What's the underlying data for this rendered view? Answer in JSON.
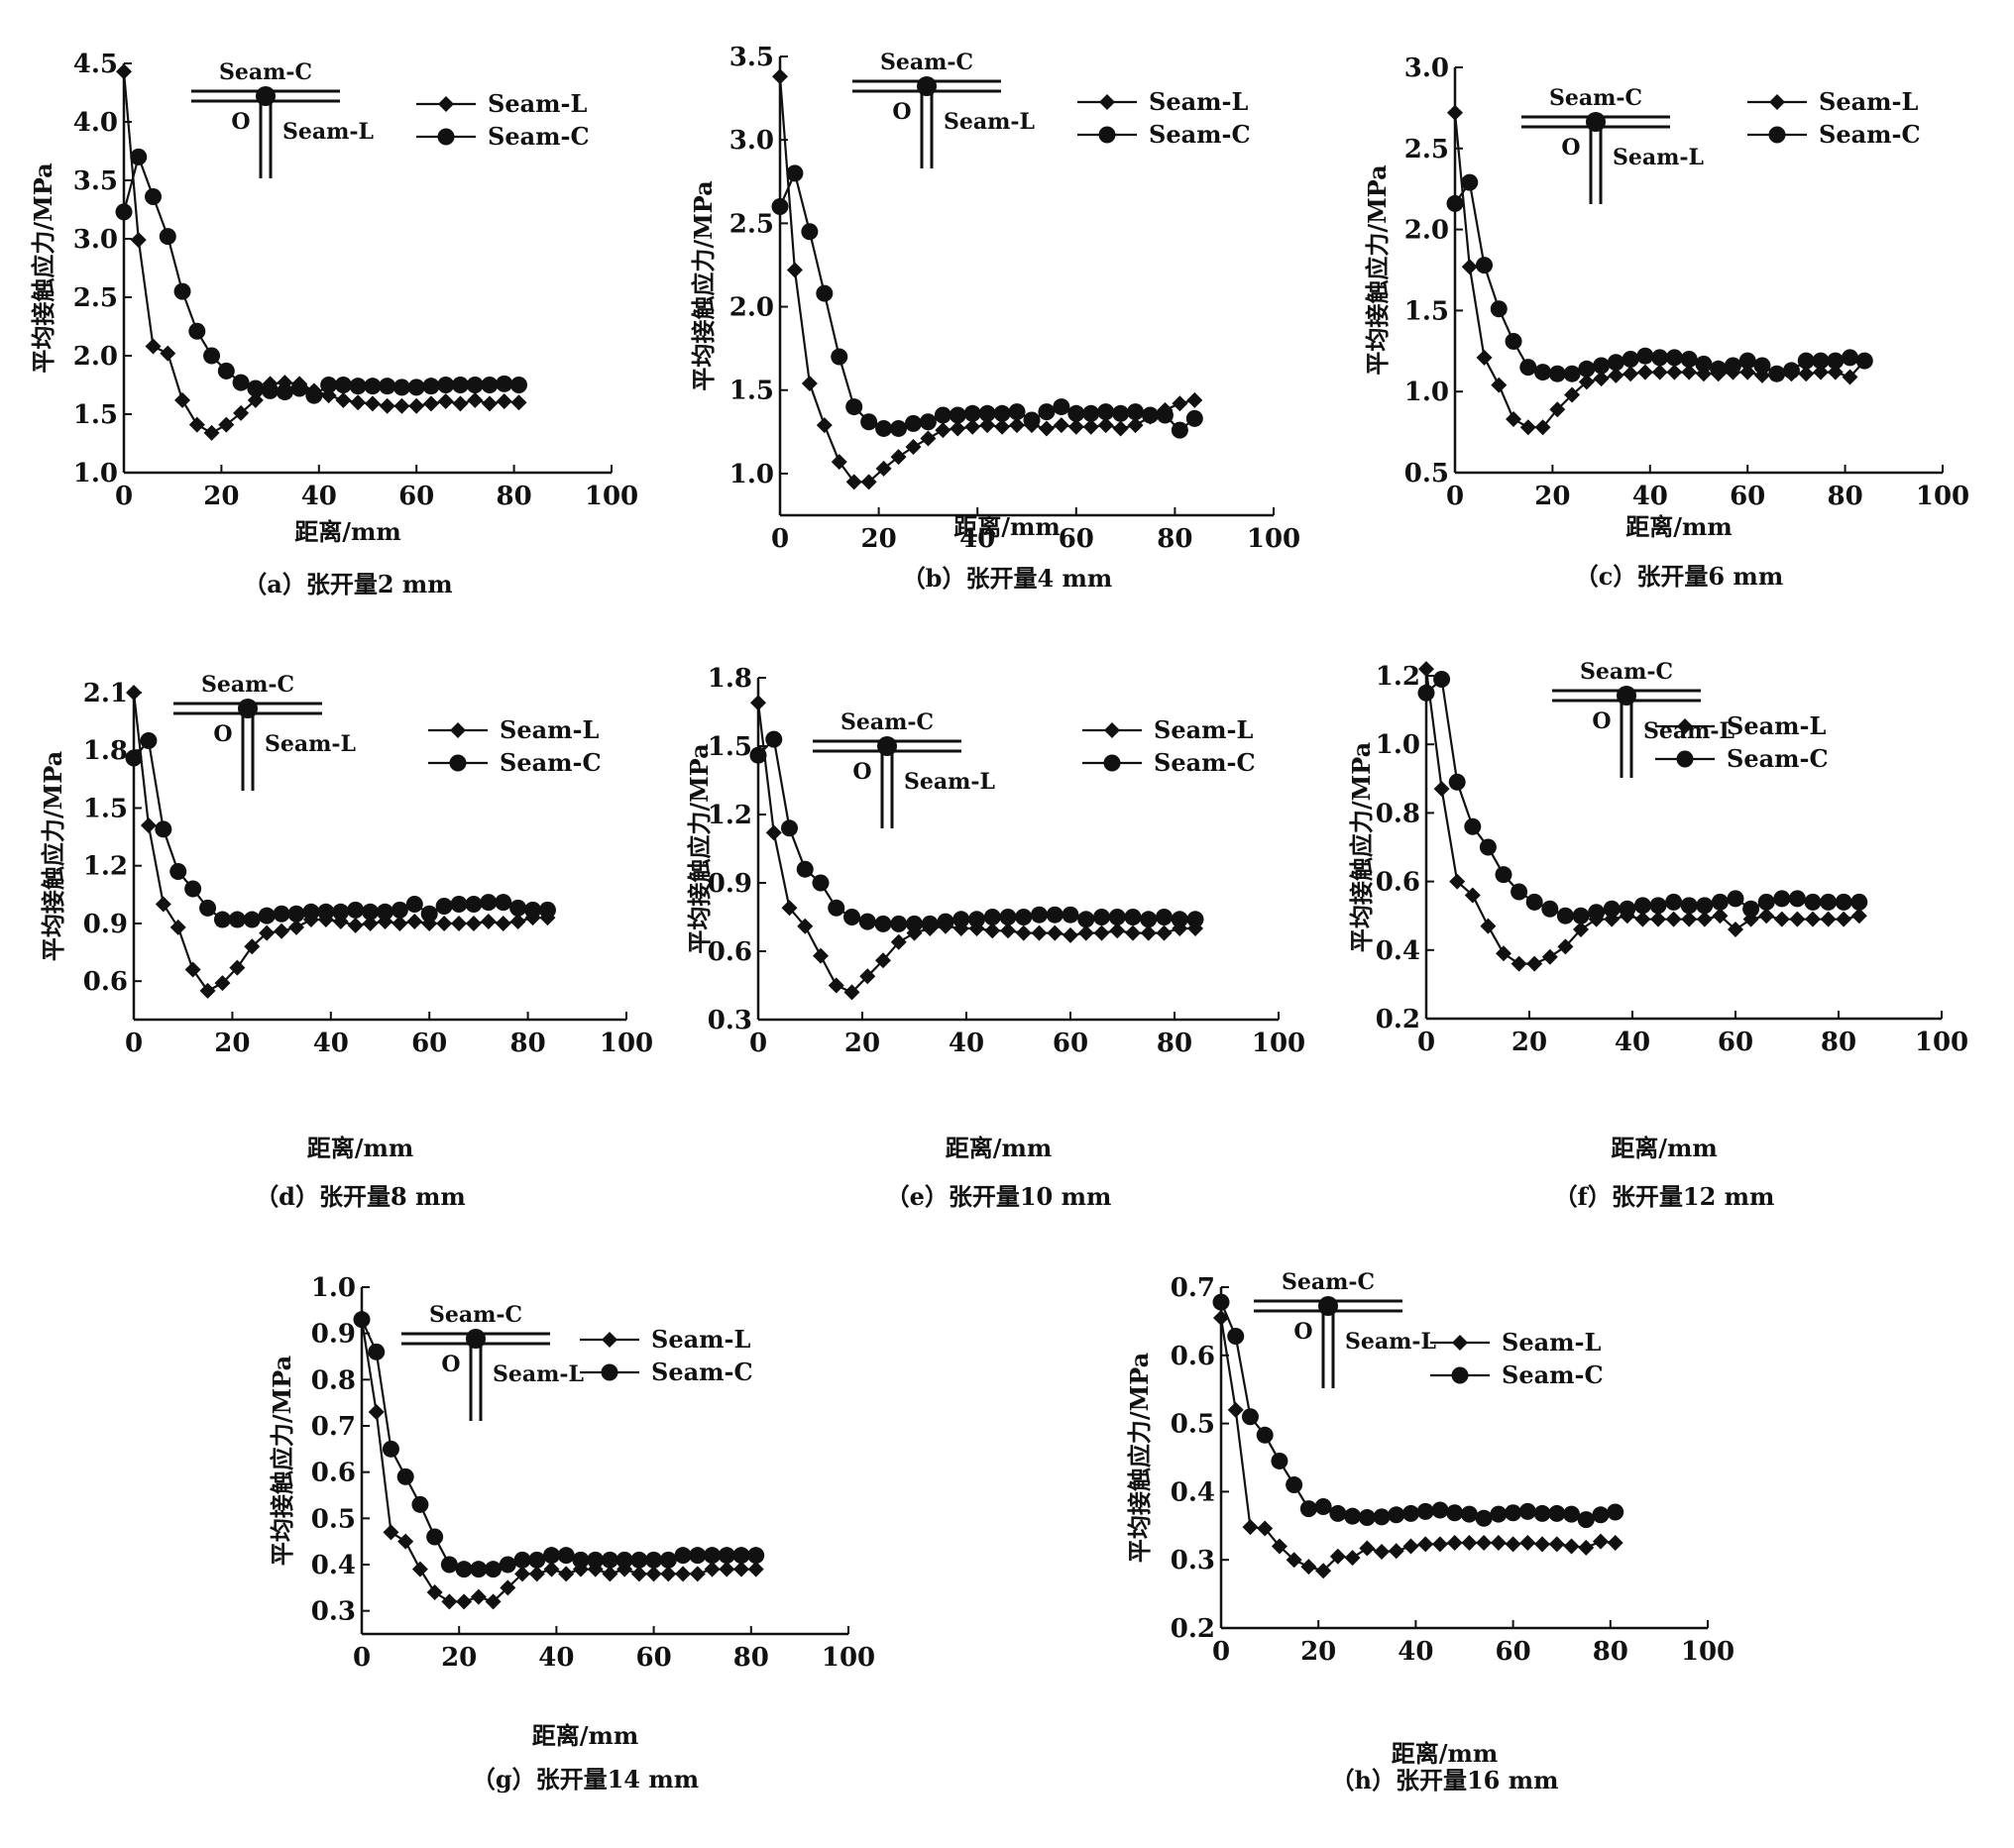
{
  "figure": {
    "legend_labels": [
      "Seam-L",
      "Seam-C"
    ],
    "schematic": {
      "top_label": "Seam-C",
      "side_label": "Seam-L",
      "origin_label": "O"
    }
  },
  "chart_data": [
    {
      "type": "line",
      "panel": "a",
      "title": "（a）张开量2 mm",
      "xlabel": "距离/mm",
      "ylabel": "平均接触应力/MPa",
      "xlim": [
        0,
        100
      ],
      "ylim": [
        1.0,
        4.5
      ],
      "xticks": [
        "0",
        "20",
        "40",
        "60",
        "80",
        "100"
      ],
      "yticks": [
        "1.0",
        "1.5",
        "2.0",
        "2.5",
        "3.0",
        "3.5",
        "4.0",
        "4.5"
      ],
      "legend": "top-right",
      "x": [
        0,
        3,
        6,
        9,
        12,
        15,
        18,
        21,
        24,
        27,
        30,
        33,
        36,
        39,
        42,
        45,
        48,
        51,
        54,
        57,
        60,
        63,
        66,
        69,
        72,
        75,
        78,
        81
      ],
      "series": [
        {
          "name": "Seam-L",
          "marker": "diamond",
          "values": [
            4.43,
            2.99,
            2.08,
            2.02,
            1.62,
            1.41,
            1.34,
            1.41,
            1.51,
            1.62,
            1.76,
            1.77,
            1.76,
            1.7,
            1.66,
            1.62,
            1.6,
            1.59,
            1.57,
            1.57,
            1.57,
            1.59,
            1.61,
            1.59,
            1.62,
            1.59,
            1.61,
            1.6
          ]
        },
        {
          "name": "Seam-C",
          "marker": "circle",
          "values": [
            3.23,
            3.7,
            3.36,
            3.02,
            2.55,
            2.21,
            2.0,
            1.87,
            1.77,
            1.72,
            1.7,
            1.69,
            1.72,
            1.66,
            1.75,
            1.75,
            1.74,
            1.74,
            1.74,
            1.73,
            1.73,
            1.74,
            1.75,
            1.75,
            1.75,
            1.75,
            1.76,
            1.75
          ]
        }
      ]
    },
    {
      "type": "line",
      "panel": "b",
      "title": "（b）张开量4 mm",
      "xlabel": "距离/mm",
      "ylabel": "平均接触应力/MPa",
      "xlim": [
        0,
        100
      ],
      "ylim": [
        0.75,
        3.5
      ],
      "xticks": [
        "0",
        "20",
        "40",
        "60",
        "80",
        "100"
      ],
      "yticks": [
        "1.0",
        "1.5",
        "2.0",
        "2.5",
        "3.0",
        "3.5"
      ],
      "legend": "top-right",
      "x": [
        0,
        3,
        6,
        9,
        12,
        15,
        18,
        21,
        24,
        27,
        30,
        33,
        36,
        39,
        42,
        45,
        48,
        51,
        54,
        57,
        60,
        63,
        66,
        69,
        72,
        75,
        78,
        81,
        84
      ],
      "series": [
        {
          "name": "Seam-L",
          "marker": "diamond",
          "values": [
            3.38,
            2.22,
            1.54,
            1.29,
            1.07,
            0.95,
            0.95,
            1.03,
            1.1,
            1.16,
            1.21,
            1.26,
            1.27,
            1.28,
            1.29,
            1.28,
            1.29,
            1.29,
            1.27,
            1.29,
            1.28,
            1.28,
            1.29,
            1.27,
            1.29,
            1.34,
            1.38,
            1.42,
            1.44
          ]
        },
        {
          "name": "Seam-C",
          "marker": "circle",
          "values": [
            2.6,
            2.8,
            2.45,
            2.08,
            1.7,
            1.4,
            1.31,
            1.27,
            1.27,
            1.3,
            1.31,
            1.35,
            1.35,
            1.36,
            1.36,
            1.36,
            1.37,
            1.32,
            1.37,
            1.4,
            1.36,
            1.36,
            1.37,
            1.36,
            1.37,
            1.35,
            1.35,
            1.26,
            1.33
          ]
        }
      ]
    },
    {
      "type": "line",
      "panel": "c",
      "title": "（c）张开量6 mm",
      "xlabel": "距离/mm",
      "ylabel": "平均接触应力/MPa",
      "xlim": [
        0,
        100
      ],
      "ylim": [
        0.5,
        3.0
      ],
      "xticks": [
        "0",
        "20",
        "40",
        "60",
        "80",
        "100"
      ],
      "yticks": [
        "0.5",
        "1.0",
        "1.5",
        "2.0",
        "2.5",
        "3.0"
      ],
      "legend": "top-right",
      "x": [
        0,
        3,
        6,
        9,
        12,
        15,
        18,
        21,
        24,
        27,
        30,
        33,
        36,
        39,
        42,
        45,
        48,
        51,
        54,
        57,
        60,
        63,
        66,
        69,
        72,
        75,
        78,
        81,
        84
      ],
      "series": [
        {
          "name": "Seam-L",
          "marker": "diamond",
          "values": [
            2.72,
            1.77,
            1.21,
            1.04,
            0.83,
            0.78,
            0.78,
            0.89,
            0.98,
            1.06,
            1.08,
            1.1,
            1.11,
            1.12,
            1.12,
            1.12,
            1.12,
            1.11,
            1.11,
            1.12,
            1.12,
            1.1,
            1.11,
            1.11,
            1.11,
            1.12,
            1.12,
            1.09,
            1.19
          ]
        },
        {
          "name": "Seam-C",
          "marker": "circle",
          "values": [
            2.16,
            2.29,
            1.78,
            1.51,
            1.31,
            1.15,
            1.12,
            1.11,
            1.11,
            1.14,
            1.16,
            1.18,
            1.2,
            1.22,
            1.21,
            1.21,
            1.2,
            1.17,
            1.14,
            1.16,
            1.19,
            1.16,
            1.11,
            1.13,
            1.19,
            1.19,
            1.19,
            1.21,
            1.19
          ]
        }
      ]
    },
    {
      "type": "line",
      "panel": "d",
      "title": "（d）张开量8 mm",
      "xlabel": "距离/mm",
      "ylabel": "平均接触应力/MPa",
      "xlim": [
        0,
        100
      ],
      "ylim": [
        0.4,
        2.1
      ],
      "xticks": [
        "0",
        "20",
        "40",
        "60",
        "80",
        "100"
      ],
      "yticks": [
        "0.6",
        "0.9",
        "1.2",
        "1.5",
        "1.8",
        "2.1"
      ],
      "legend": "top-right",
      "x": [
        0,
        3,
        6,
        9,
        12,
        15,
        18,
        21,
        24,
        27,
        30,
        33,
        36,
        39,
        42,
        45,
        48,
        51,
        54,
        57,
        60,
        63,
        66,
        69,
        72,
        75,
        78,
        81,
        84
      ],
      "series": [
        {
          "name": "Seam-L",
          "marker": "diamond",
          "values": [
            2.1,
            1.41,
            1.0,
            0.88,
            0.66,
            0.55,
            0.59,
            0.67,
            0.78,
            0.85,
            0.86,
            0.88,
            0.92,
            0.92,
            0.91,
            0.89,
            0.9,
            0.91,
            0.9,
            0.91,
            0.9,
            0.9,
            0.9,
            0.9,
            0.91,
            0.9,
            0.91,
            0.93,
            0.93
          ]
        },
        {
          "name": "Seam-C",
          "marker": "circle",
          "values": [
            1.76,
            1.85,
            1.39,
            1.17,
            1.08,
            0.98,
            0.92,
            0.92,
            0.92,
            0.94,
            0.95,
            0.95,
            0.96,
            0.96,
            0.96,
            0.97,
            0.96,
            0.96,
            0.97,
            1.0,
            0.95,
            0.99,
            1.0,
            1.0,
            1.01,
            1.01,
            0.98,
            0.97,
            0.97
          ]
        }
      ]
    },
    {
      "type": "line",
      "panel": "e",
      "title": "（e）张开量10 mm",
      "xlabel": "距离/mm",
      "ylabel": "平均接触应力/MPa",
      "xlim": [
        0,
        100
      ],
      "ylim": [
        0.3,
        1.8
      ],
      "xticks": [
        "0",
        "20",
        "40",
        "60",
        "80",
        "100"
      ],
      "yticks": [
        "0.3",
        "0.6",
        "0.9",
        "1.2",
        "1.5",
        "1.8"
      ],
      "legend": "top-right",
      "x": [
        0,
        3,
        6,
        9,
        12,
        15,
        18,
        21,
        24,
        27,
        30,
        33,
        36,
        39,
        42,
        45,
        48,
        51,
        54,
        57,
        60,
        63,
        66,
        69,
        72,
        75,
        78,
        81,
        84
      ],
      "series": [
        {
          "name": "Seam-L",
          "marker": "diamond",
          "values": [
            1.69,
            1.12,
            0.79,
            0.71,
            0.58,
            0.45,
            0.42,
            0.49,
            0.56,
            0.64,
            0.68,
            0.7,
            0.71,
            0.7,
            0.7,
            0.69,
            0.69,
            0.68,
            0.68,
            0.68,
            0.67,
            0.68,
            0.68,
            0.69,
            0.68,
            0.68,
            0.68,
            0.7,
            0.7
          ]
        },
        {
          "name": "Seam-C",
          "marker": "circle",
          "values": [
            1.46,
            1.53,
            1.14,
            0.96,
            0.9,
            0.79,
            0.75,
            0.73,
            0.72,
            0.72,
            0.72,
            0.72,
            0.73,
            0.74,
            0.74,
            0.75,
            0.75,
            0.75,
            0.76,
            0.76,
            0.76,
            0.74,
            0.75,
            0.75,
            0.75,
            0.74,
            0.75,
            0.74,
            0.74
          ]
        }
      ]
    },
    {
      "type": "line",
      "panel": "f",
      "title": "（f）张开量12 mm",
      "xlabel": "距离/mm",
      "ylabel": "平均接触应力/MPa",
      "xlim": [
        0,
        100
      ],
      "ylim": [
        0.2,
        1.2
      ],
      "xticks": [
        "0",
        "20",
        "40",
        "60",
        "80",
        "100"
      ],
      "yticks": [
        "0.2",
        "0.4",
        "0.6",
        "0.8",
        "1.0",
        "1.2"
      ],
      "legend": "top-right",
      "x": [
        0,
        3,
        6,
        9,
        12,
        15,
        18,
        21,
        24,
        27,
        30,
        33,
        36,
        39,
        42,
        45,
        48,
        51,
        54,
        57,
        60,
        63,
        66,
        69,
        72,
        75,
        78,
        81,
        84
      ],
      "series": [
        {
          "name": "Seam-L",
          "marker": "diamond",
          "values": [
            1.22,
            0.87,
            0.6,
            0.56,
            0.47,
            0.39,
            0.36,
            0.36,
            0.38,
            0.41,
            0.46,
            0.49,
            0.49,
            0.5,
            0.49,
            0.49,
            0.49,
            0.49,
            0.49,
            0.5,
            0.46,
            0.49,
            0.5,
            0.49,
            0.49,
            0.49,
            0.49,
            0.49,
            0.5
          ]
        },
        {
          "name": "Seam-C",
          "marker": "circle",
          "values": [
            1.15,
            1.19,
            0.89,
            0.76,
            0.7,
            0.62,
            0.57,
            0.54,
            0.52,
            0.5,
            0.5,
            0.51,
            0.52,
            0.52,
            0.53,
            0.53,
            0.54,
            0.53,
            0.53,
            0.54,
            0.55,
            0.52,
            0.54,
            0.55,
            0.55,
            0.54,
            0.54,
            0.54,
            0.54
          ]
        }
      ]
    },
    {
      "type": "line",
      "panel": "g",
      "title": "（g）张开量14 mm",
      "xlabel": "距离/mm",
      "ylabel": "平均接触应力/MPa",
      "xlim": [
        0,
        100
      ],
      "ylim": [
        0.25,
        1.0
      ],
      "xticks": [
        "0",
        "20",
        "40",
        "60",
        "80",
        "100"
      ],
      "yticks": [
        "0.3",
        "0.4",
        "0.5",
        "0.6",
        "0.7",
        "0.8",
        "0.9",
        "1.0"
      ],
      "legend": "top-right",
      "x": [
        0,
        3,
        6,
        9,
        12,
        15,
        18,
        21,
        24,
        27,
        30,
        33,
        36,
        39,
        42,
        45,
        48,
        51,
        54,
        57,
        60,
        63,
        66,
        69,
        72,
        75,
        78,
        81
      ],
      "series": [
        {
          "name": "Seam-L",
          "marker": "diamond",
          "values": [
            0.93,
            0.73,
            0.47,
            0.45,
            0.39,
            0.34,
            0.32,
            0.32,
            0.33,
            0.32,
            0.35,
            0.38,
            0.38,
            0.39,
            0.38,
            0.39,
            0.39,
            0.38,
            0.39,
            0.38,
            0.38,
            0.38,
            0.38,
            0.38,
            0.39,
            0.39,
            0.39,
            0.39
          ]
        },
        {
          "name": "Seam-C",
          "marker": "circle",
          "values": [
            0.93,
            0.86,
            0.65,
            0.59,
            0.53,
            0.46,
            0.4,
            0.39,
            0.39,
            0.39,
            0.4,
            0.41,
            0.41,
            0.42,
            0.42,
            0.41,
            0.41,
            0.41,
            0.41,
            0.41,
            0.41,
            0.41,
            0.42,
            0.42,
            0.42,
            0.42,
            0.42,
            0.42
          ]
        }
      ]
    },
    {
      "type": "line",
      "panel": "h",
      "title": "（h）张开量16 mm",
      "xlabel": "距离/mm",
      "ylabel": "平均接触应力/MPa",
      "xlim": [
        0,
        100
      ],
      "ylim": [
        0.2,
        0.7
      ],
      "xticks": [
        "0",
        "20",
        "40",
        "60",
        "80",
        "100"
      ],
      "yticks": [
        "0.2",
        "0.3",
        "0.4",
        "0.5",
        "0.6",
        "0.7"
      ],
      "legend": "top-right",
      "x": [
        0,
        3,
        6,
        9,
        12,
        15,
        18,
        21,
        24,
        27,
        30,
        33,
        36,
        39,
        42,
        45,
        48,
        51,
        54,
        57,
        60,
        63,
        66,
        69,
        72,
        75,
        78,
        81
      ],
      "series": [
        {
          "name": "Seam-L",
          "marker": "diamond",
          "values": [
            0.655,
            0.52,
            0.348,
            0.346,
            0.32,
            0.3,
            0.29,
            0.284,
            0.305,
            0.303,
            0.317,
            0.312,
            0.313,
            0.32,
            0.323,
            0.323,
            0.325,
            0.325,
            0.325,
            0.325,
            0.323,
            0.325,
            0.323,
            0.323,
            0.32,
            0.318,
            0.327,
            0.325
          ]
        },
        {
          "name": "Seam-C",
          "marker": "circle",
          "values": [
            0.678,
            0.628,
            0.51,
            0.483,
            0.445,
            0.41,
            0.375,
            0.378,
            0.368,
            0.364,
            0.362,
            0.363,
            0.366,
            0.368,
            0.371,
            0.373,
            0.369,
            0.367,
            0.361,
            0.367,
            0.369,
            0.371,
            0.368,
            0.368,
            0.367,
            0.359,
            0.366,
            0.37
          ]
        }
      ]
    }
  ]
}
